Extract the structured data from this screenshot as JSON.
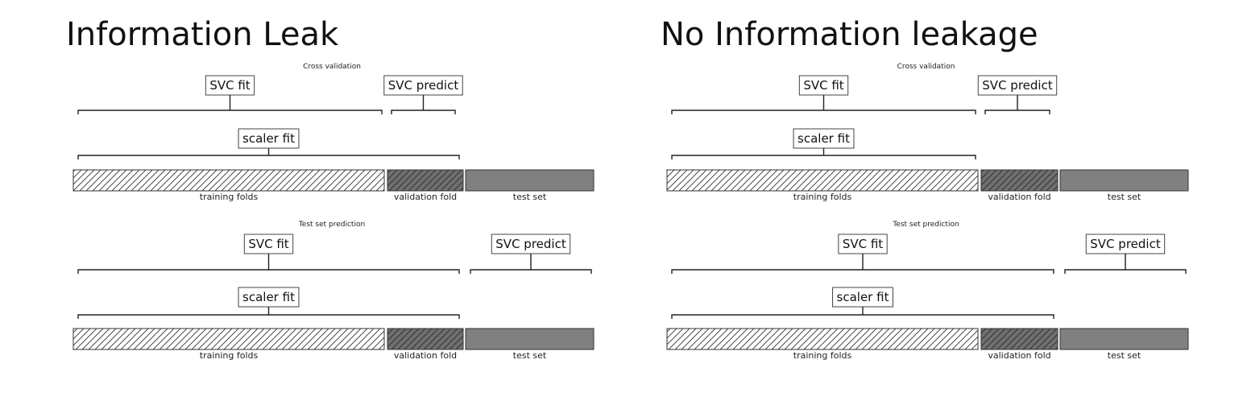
{
  "panels": [
    {
      "heading": "Information Leak",
      "sections": [
        {
          "title": "Cross validation",
          "segments": [
            "training folds",
            "validation fold",
            "test set"
          ],
          "fit_boxes": [
            {
              "label": "SVC fit",
              "span": "train"
            },
            {
              "label": "SVC predict",
              "span": "valid"
            },
            {
              "label": "scaler fit",
              "span": "train+valid"
            }
          ]
        },
        {
          "title": "Test set prediction",
          "segments": [
            "training folds",
            "validation fold",
            "test set"
          ],
          "fit_boxes": [
            {
              "label": "SVC fit",
              "span": "train+valid"
            },
            {
              "label": "SVC predict",
              "span": "test"
            },
            {
              "label": "scaler fit",
              "span": "train+valid"
            }
          ]
        }
      ]
    },
    {
      "heading": "No Information leakage",
      "sections": [
        {
          "title": "Cross validation",
          "segments": [
            "training folds",
            "validation fold",
            "test set"
          ],
          "fit_boxes": [
            {
              "label": "SVC fit",
              "span": "train"
            },
            {
              "label": "SVC predict",
              "span": "valid"
            },
            {
              "label": "scaler fit",
              "span": "train"
            }
          ]
        },
        {
          "title": "Test set prediction",
          "segments": [
            "training folds",
            "validation fold",
            "test set"
          ],
          "fit_boxes": [
            {
              "label": "SVC fit",
              "span": "train+valid"
            },
            {
              "label": "SVC predict",
              "span": "test"
            },
            {
              "label": "scaler fit",
              "span": "train+valid"
            }
          ]
        }
      ]
    }
  ],
  "colors": {
    "hatch_line": "#333333",
    "validation_fill": "#6f6f6f",
    "test_fill": "#808080",
    "bracket": "#222222"
  }
}
